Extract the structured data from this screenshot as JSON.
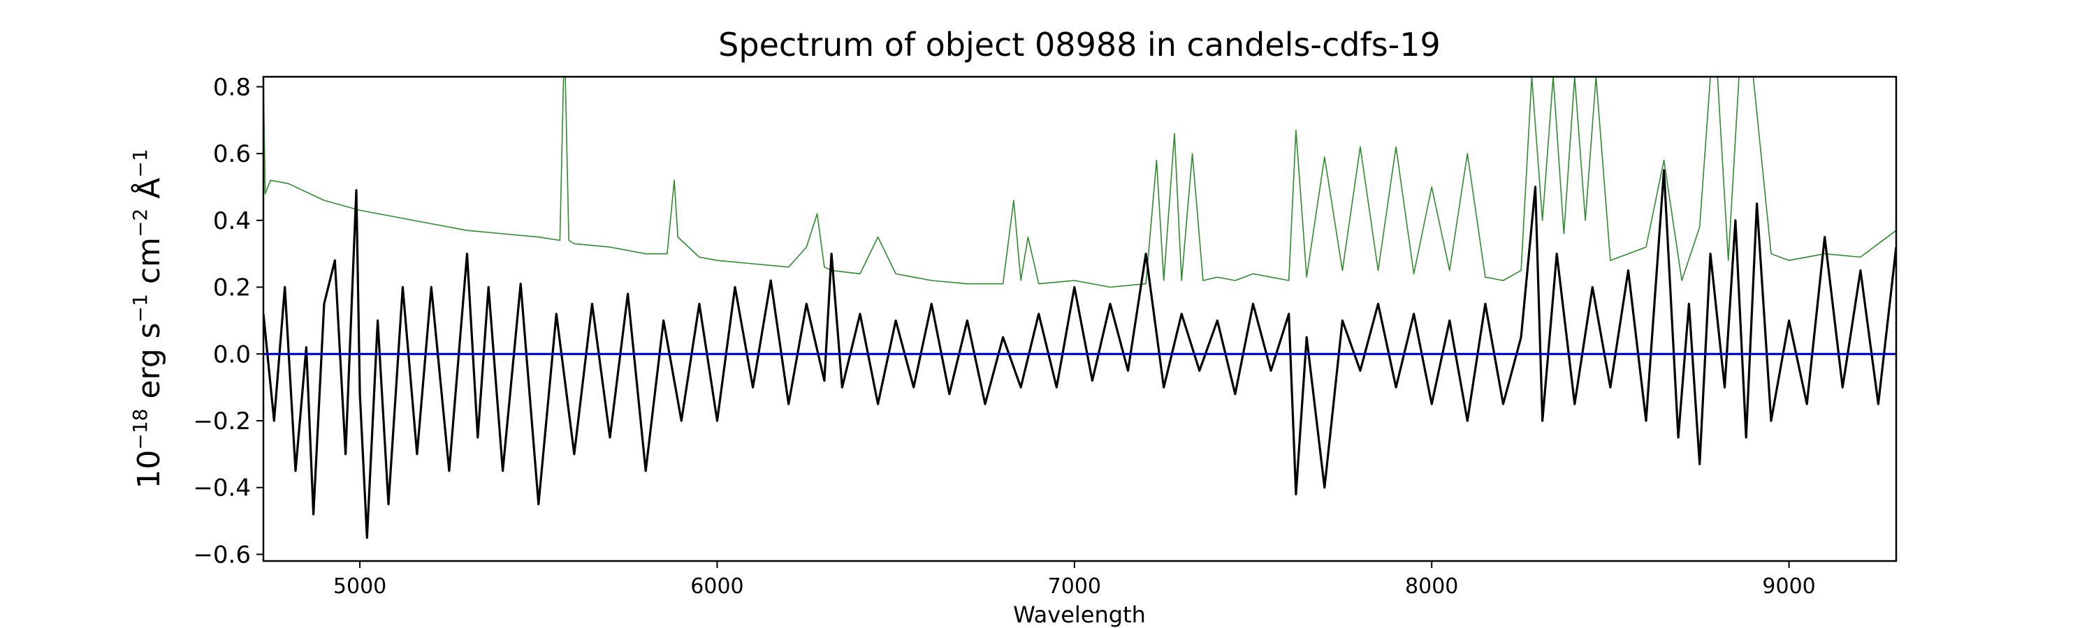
{
  "chart_data": {
    "type": "line",
    "title": "Spectrum of object 08988 in candels-cdfs-19",
    "xlabel": "Wavelength",
    "ylabel_parts": {
      "base": "10",
      "exp1": "−18",
      "erg": " erg s",
      "exp2": "−1",
      "cm": " cm",
      "exp3": "−2",
      "ang": " Å",
      "exp4": "−1"
    },
    "xlim": [
      4730,
      9300
    ],
    "ylim": [
      -0.62,
      0.83
    ],
    "xticks": [
      5000,
      6000,
      7000,
      8000,
      9000
    ],
    "yticks": [
      -0.6,
      -0.4,
      -0.2,
      0.0,
      0.2,
      0.4,
      0.6,
      0.8
    ],
    "ytick_labels": [
      "−0.6",
      "−0.4",
      "−0.2",
      "0.0",
      "0.2",
      "0.4",
      "0.6",
      "0.8"
    ],
    "grid": false,
    "legend": "none",
    "colors": {
      "flux": "#000000",
      "error": "#2e8b2e",
      "zero": "#0000cc"
    },
    "series": [
      {
        "key": "flux",
        "color": "#000000",
        "x": [
          4730,
          4760,
          4790,
          4820,
          4850,
          4870,
          4900,
          4930,
          4960,
          4990,
          5000,
          5020,
          5050,
          5080,
          5120,
          5160,
          5200,
          5250,
          5300,
          5330,
          5360,
          5400,
          5450,
          5500,
          5550,
          5600,
          5650,
          5700,
          5750,
          5800,
          5850,
          5900,
          5950,
          6000,
          6050,
          6100,
          6150,
          6200,
          6250,
          6300,
          6320,
          6350,
          6400,
          6450,
          6500,
          6550,
          6600,
          6650,
          6700,
          6750,
          6800,
          6850,
          6900,
          6950,
          7000,
          7050,
          7100,
          7150,
          7200,
          7250,
          7300,
          7350,
          7400,
          7450,
          7500,
          7550,
          7600,
          7620,
          7650,
          7700,
          7750,
          7800,
          7850,
          7900,
          7950,
          8000,
          8050,
          8100,
          8150,
          8200,
          8250,
          8290,
          8310,
          8350,
          8400,
          8450,
          8500,
          8550,
          8600,
          8650,
          8690,
          8720,
          8750,
          8780,
          8820,
          8850,
          8880,
          8910,
          8950,
          9000,
          9050,
          9100,
          9150,
          9200,
          9250,
          9300
        ],
        "y": [
          0.12,
          -0.2,
          0.2,
          -0.35,
          0.02,
          -0.48,
          0.15,
          0.28,
          -0.3,
          0.49,
          -0.12,
          -0.55,
          0.1,
          -0.45,
          0.2,
          -0.3,
          0.2,
          -0.35,
          0.3,
          -0.25,
          0.2,
          -0.35,
          0.21,
          -0.45,
          0.12,
          -0.3,
          0.15,
          -0.25,
          0.18,
          -0.35,
          0.1,
          -0.2,
          0.15,
          -0.2,
          0.2,
          -0.1,
          0.22,
          -0.15,
          0.15,
          -0.08,
          0.3,
          -0.1,
          0.12,
          -0.15,
          0.1,
          -0.1,
          0.15,
          -0.12,
          0.1,
          -0.15,
          0.05,
          -0.1,
          0.12,
          -0.1,
          0.2,
          -0.08,
          0.15,
          -0.05,
          0.3,
          -0.1,
          0.12,
          -0.05,
          0.1,
          -0.12,
          0.15,
          -0.05,
          0.12,
          -0.42,
          0.05,
          -0.4,
          0.1,
          -0.05,
          0.15,
          -0.1,
          0.12,
          -0.15,
          0.1,
          -0.2,
          0.15,
          -0.15,
          0.05,
          0.5,
          -0.2,
          0.3,
          -0.15,
          0.2,
          -0.1,
          0.25,
          -0.2,
          0.55,
          -0.25,
          0.15,
          -0.33,
          0.3,
          -0.1,
          0.4,
          -0.25,
          0.45,
          -0.2,
          0.1,
          -0.15,
          0.35,
          -0.1,
          0.25,
          -0.15,
          0.32
        ]
      },
      {
        "key": "error",
        "color": "#2e8b2e",
        "x": [
          4730,
          4735,
          4750,
          4800,
          4900,
          5000,
          5100,
          5200,
          5300,
          5400,
          5500,
          5560,
          5570,
          5575,
          5585,
          5600,
          5700,
          5800,
          5860,
          5880,
          5890,
          5900,
          5950,
          6000,
          6100,
          6200,
          6250,
          6280,
          6300,
          6320,
          6400,
          6450,
          6500,
          6550,
          6600,
          6700,
          6800,
          6830,
          6850,
          6870,
          6900,
          7000,
          7100,
          7200,
          7230,
          7250,
          7280,
          7300,
          7330,
          7360,
          7400,
          7450,
          7500,
          7550,
          7600,
          7620,
          7650,
          7700,
          7750,
          7800,
          7850,
          7900,
          7950,
          8000,
          8050,
          8100,
          8150,
          8200,
          8250,
          8280,
          8310,
          8340,
          8370,
          8400,
          8430,
          8460,
          8500,
          8550,
          8600,
          8650,
          8700,
          8750,
          8780,
          8800,
          8830,
          8860,
          8900,
          8950,
          9000,
          9100,
          9200,
          9300
        ],
        "y": [
          0.83,
          0.48,
          0.52,
          0.51,
          0.46,
          0.43,
          0.41,
          0.39,
          0.37,
          0.36,
          0.35,
          0.34,
          0.83,
          0.83,
          0.34,
          0.33,
          0.32,
          0.3,
          0.3,
          0.52,
          0.35,
          0.34,
          0.29,
          0.28,
          0.27,
          0.26,
          0.32,
          0.42,
          0.26,
          0.25,
          0.24,
          0.35,
          0.24,
          0.23,
          0.22,
          0.21,
          0.21,
          0.46,
          0.22,
          0.35,
          0.21,
          0.22,
          0.2,
          0.21,
          0.58,
          0.22,
          0.66,
          0.22,
          0.6,
          0.22,
          0.23,
          0.22,
          0.24,
          0.23,
          0.22,
          0.67,
          0.23,
          0.59,
          0.25,
          0.62,
          0.25,
          0.62,
          0.24,
          0.5,
          0.25,
          0.6,
          0.23,
          0.22,
          0.25,
          0.83,
          0.4,
          0.83,
          0.36,
          0.83,
          0.4,
          0.83,
          0.28,
          0.3,
          0.32,
          0.58,
          0.22,
          0.38,
          0.83,
          0.83,
          0.28,
          0.83,
          0.83,
          0.3,
          0.28,
          0.3,
          0.29,
          0.37
        ]
      },
      {
        "key": "zero",
        "color": "#0000cc",
        "x": [
          4730,
          9300
        ],
        "y": [
          0,
          0
        ]
      }
    ]
  }
}
